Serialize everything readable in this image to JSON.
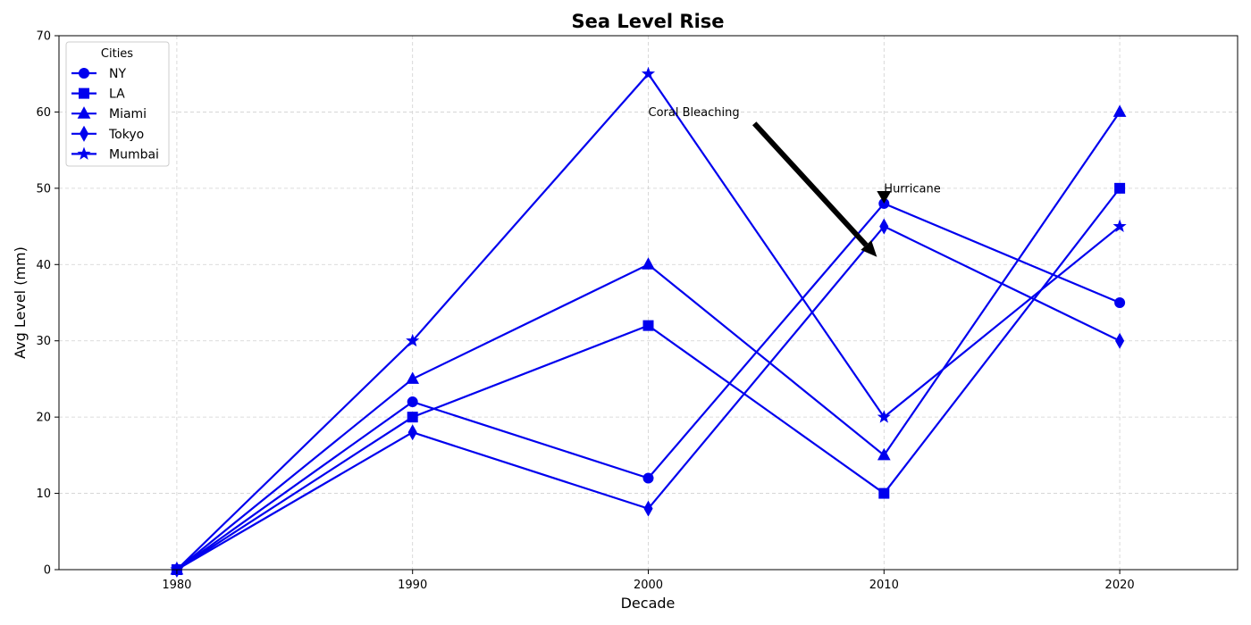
{
  "chart_data": {
    "type": "line",
    "title": "Sea Level Rise",
    "xlabel": "Decade",
    "ylabel": "Avg Level (mm)",
    "x": [
      1980,
      1990,
      2000,
      2010,
      2020
    ],
    "xlim": [
      1975,
      2025
    ],
    "ylim": [
      0,
      70
    ],
    "xticks": [
      "1980",
      "1990",
      "2000",
      "2010",
      "2020"
    ],
    "yticks": [
      "0",
      "10",
      "20",
      "30",
      "40",
      "50",
      "60",
      "70"
    ],
    "grid": true,
    "color": "#0000ee",
    "legend": {
      "title": "Cities",
      "position": "top-left"
    },
    "series": [
      {
        "name": "NY",
        "marker": "circle",
        "values": [
          0,
          22,
          12,
          48,
          35
        ]
      },
      {
        "name": "LA",
        "marker": "square",
        "values": [
          0,
          20,
          32,
          10,
          50
        ]
      },
      {
        "name": "Miami",
        "marker": "triangle",
        "values": [
          0,
          25,
          40,
          15,
          60
        ]
      },
      {
        "name": "Tokyo",
        "marker": "diamond",
        "values": [
          0,
          18,
          8,
          45,
          30
        ]
      },
      {
        "name": "Mumbai",
        "marker": "star",
        "values": [
          0,
          30,
          65,
          20,
          45
        ]
      }
    ],
    "annotations": [
      {
        "text": "Coral Bleaching",
        "text_x": 2000,
        "text_y": 60,
        "arrow_from_x": 2004.5,
        "arrow_from_y": 58.5,
        "arrow_to_x": 2009.7,
        "arrow_to_y": 41
      },
      {
        "text": "Hurricane",
        "text_x": 2010,
        "text_y": 50,
        "arrow_to_x": 2010,
        "arrow_to_y": 48
      }
    ]
  }
}
